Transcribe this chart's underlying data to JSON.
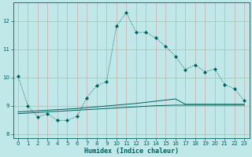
{
  "xlabel": "Humidex (Indice chaleur)",
  "bg_color": "#c0e8e8",
  "grid_color": "#d4aaaa",
  "line_color": "#006060",
  "ylim": [
    7.85,
    12.65
  ],
  "xlim": [
    -0.5,
    23.5
  ],
  "yticks": [
    8,
    9,
    10,
    11,
    12
  ],
  "xticks": [
    0,
    1,
    2,
    3,
    4,
    5,
    6,
    7,
    8,
    9,
    10,
    11,
    12,
    13,
    14,
    15,
    16,
    17,
    18,
    19,
    20,
    21,
    22,
    23
  ],
  "curve1_x": [
    0,
    1,
    2,
    3,
    4,
    5,
    6,
    7,
    8,
    9,
    10,
    11,
    12,
    13,
    14,
    15,
    16,
    17,
    18,
    19,
    20,
    21,
    22,
    23
  ],
  "curve1_y": [
    10.05,
    9.0,
    8.6,
    8.72,
    8.48,
    8.48,
    8.62,
    9.28,
    9.72,
    9.85,
    11.82,
    12.3,
    11.6,
    11.6,
    11.4,
    11.1,
    10.75,
    10.28,
    10.45,
    10.2,
    10.3,
    9.75,
    9.6,
    9.18
  ],
  "curve2_x": [
    0,
    1,
    2,
    3,
    4,
    5,
    6,
    7,
    8,
    9,
    10,
    11,
    12,
    13,
    14,
    15,
    16,
    17,
    18,
    19,
    20,
    21,
    22,
    23
  ],
  "curve2_y": [
    8.78,
    8.8,
    8.82,
    8.84,
    8.86,
    8.88,
    8.9,
    8.93,
    8.96,
    8.99,
    9.02,
    9.05,
    9.08,
    9.12,
    9.16,
    9.2,
    9.24,
    9.05,
    9.05,
    9.05,
    9.05,
    9.05,
    9.05,
    9.05
  ],
  "curve3_x": [
    0,
    1,
    2,
    3,
    4,
    5,
    6,
    7,
    8,
    9,
    10,
    11,
    12,
    13,
    14,
    15,
    16,
    17,
    18,
    19,
    20,
    21,
    22,
    23
  ],
  "curve3_y": [
    8.72,
    8.74,
    8.76,
    8.78,
    8.8,
    8.82,
    8.84,
    8.86,
    8.88,
    8.9,
    8.92,
    8.94,
    8.96,
    8.98,
    9.0,
    9.01,
    9.02,
    9.02,
    9.02,
    9.02,
    9.02,
    9.02,
    9.02,
    9.02
  ]
}
